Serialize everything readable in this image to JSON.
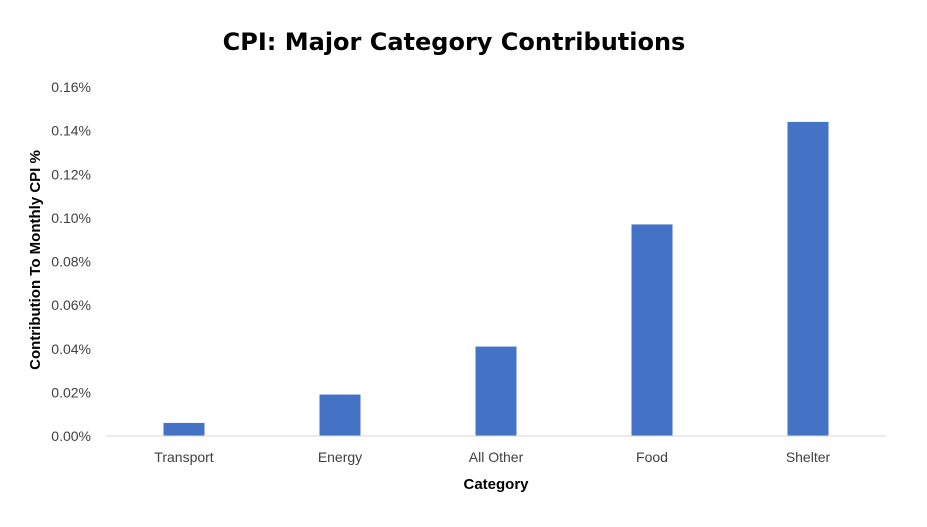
{
  "chart_data": {
    "type": "bar",
    "title": "CPI: Major Category Contributions",
    "xlabel": "Category",
    "ylabel": "Contribution To Monthly CPI %",
    "categories": [
      "Transport",
      "Energy",
      "All Other",
      "Food",
      "Shelter"
    ],
    "values": [
      0.006,
      0.019,
      0.041,
      0.097,
      0.144
    ],
    "value_unit": "%",
    "ylim": [
      0,
      0.16
    ],
    "yticks": [
      0,
      0.02,
      0.04,
      0.06,
      0.08,
      0.1,
      0.12,
      0.14,
      0.16
    ],
    "ytick_labels": [
      "0.00%",
      "0.02%",
      "0.04%",
      "0.06%",
      "0.08%",
      "0.10%",
      "0.12%",
      "0.14%",
      "0.16%"
    ],
    "grid": false,
    "legend": "none",
    "bar_color": "#4472C4"
  }
}
